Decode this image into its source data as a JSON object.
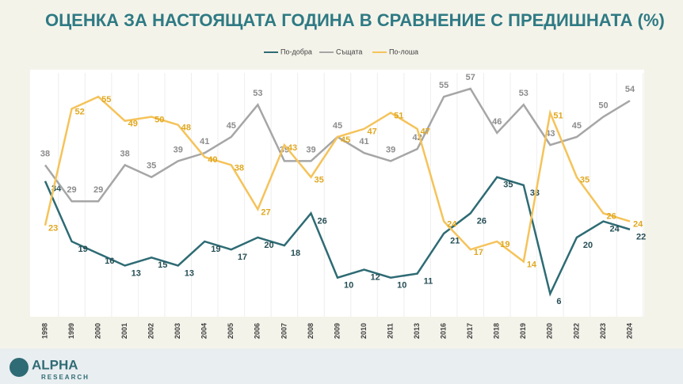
{
  "chart_data": {
    "type": "line",
    "title": "ОЦЕНКА ЗА НАСТОЯЩАТА ГОДИНА В СРАВНЕНИЕ С ПРЕДИШНАТА (%)",
    "categories": [
      "1998",
      "1999",
      "2000",
      "2001",
      "2002",
      "2003",
      "2004",
      "2005",
      "2006",
      "2007",
      "2008",
      "2009",
      "2010",
      "2011",
      "2013",
      "2016",
      "2017",
      "2018",
      "2019",
      "2020",
      "2022",
      "2023",
      "2024"
    ],
    "series": [
      {
        "name": "По-добра",
        "color": "#2e6b74",
        "values": [
          34,
          19,
          16,
          13,
          15,
          13,
          19,
          17,
          20,
          18,
          26,
          10,
          12,
          10,
          11,
          21,
          26,
          35,
          33,
          6,
          20,
          24,
          22
        ]
      },
      {
        "name": "Същата",
        "color": "#a6a6a6",
        "values": [
          38,
          29,
          29,
          38,
          35,
          39,
          41,
          45,
          53,
          39,
          39,
          45,
          41,
          39,
          42,
          55,
          57,
          46,
          53,
          43,
          45,
          50,
          54
        ]
      },
      {
        "name": "По-лоша",
        "color": "#f5c35a",
        "values": [
          23,
          52,
          55,
          49,
          50,
          48,
          40,
          38,
          27,
          43,
          35,
          45,
          47,
          51,
          47,
          24,
          17,
          19,
          14,
          51,
          35,
          26,
          24
        ]
      }
    ],
    "legend": "top",
    "logo": {
      "name": "ALPHA",
      "sub": "RESEARCH"
    }
  }
}
